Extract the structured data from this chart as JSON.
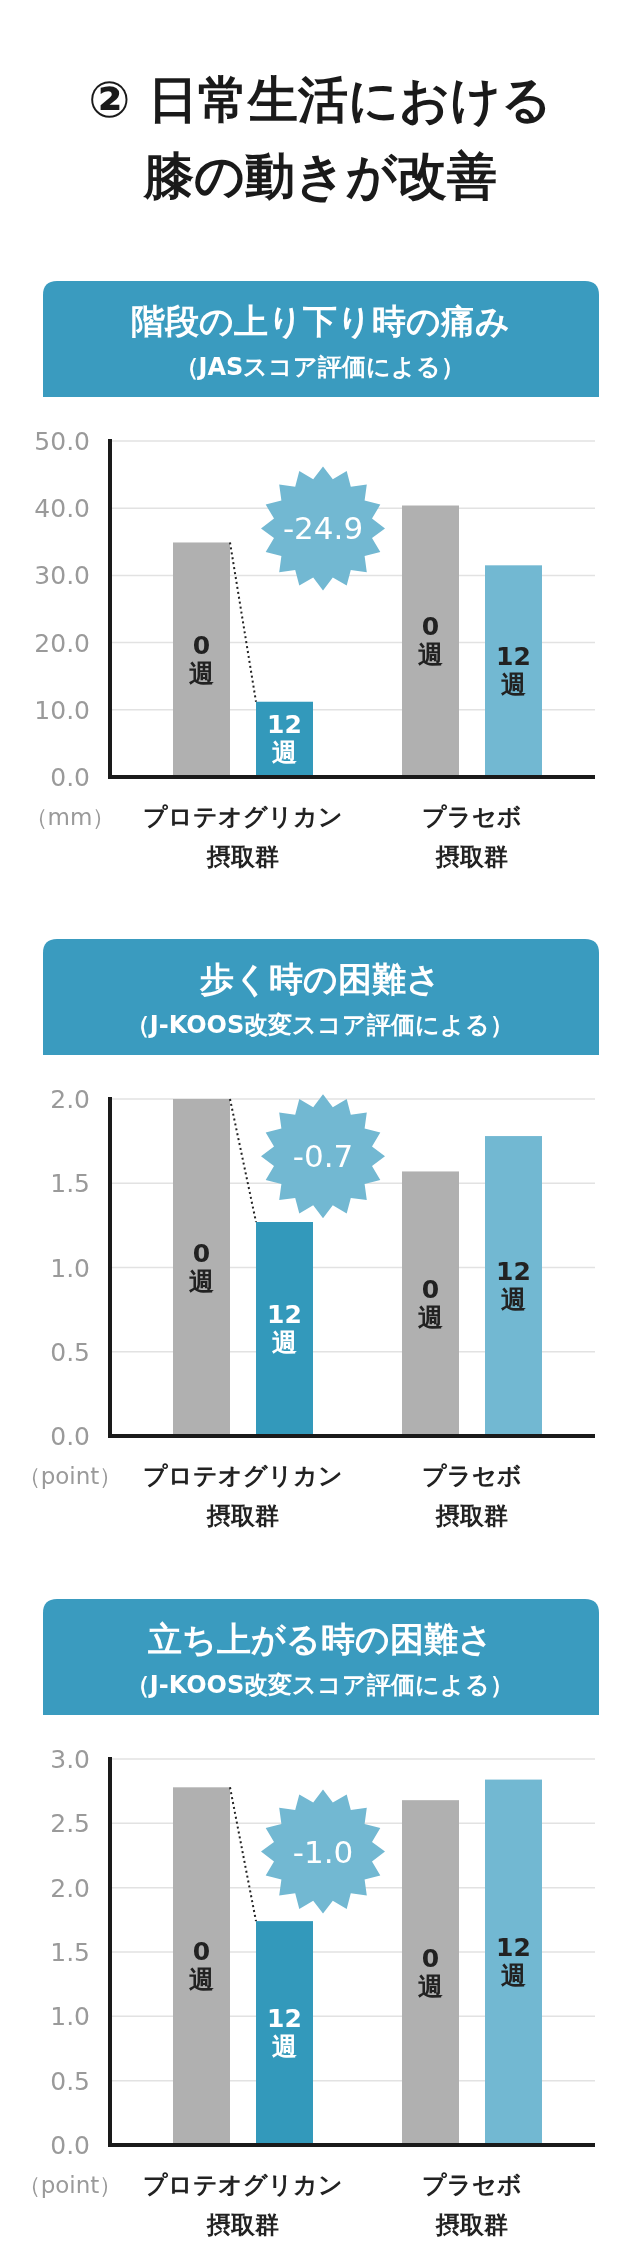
{
  "chart_data": [
    {
      "type": "bar",
      "title": "階段の上り下り時の痛み",
      "subtitle": "（JASスコア評価による）",
      "ylabel": "（mm）",
      "categories": [
        "プロテオグリカン摂取群",
        "プラセボ摂取群"
      ],
      "series": [
        {
          "name": "0\n週",
          "color": "#b0b0b0",
          "values": [
            34.9,
            40.4
          ]
        },
        {
          "name": "12\n週",
          "colors": [
            "#3399bb",
            "#72b8d2"
          ],
          "values": [
            11.2,
            31.5
          ]
        }
      ],
      "ylim": [
        0,
        50
      ],
      "yticks": [
        {
          "value": 0,
          "label": "0.0"
        },
        {
          "value": 10,
          "label": "10.0"
        },
        {
          "value": 20,
          "label": "20.0"
        },
        {
          "value": 30,
          "label": "30.0"
        },
        {
          "value": 40,
          "label": "40.0"
        },
        {
          "value": 50,
          "label": "50.0"
        }
      ],
      "grid": "y",
      "legend": false,
      "annotations": [
        "② 日常生活における膝の動きが改善",
        "-24.9"
      ]
    },
    {
      "type": "bar",
      "title": "歩く時の困難さ",
      "subtitle": "（J-KOOS改変スコア評価による）",
      "ylabel": "（point）",
      "categories": [
        "プロテオグリカン摂取群",
        "プラセボ摂取群"
      ],
      "series": [
        {
          "name": "0\n週",
          "color": "#b0b0b0",
          "values": [
            2.0,
            1.57
          ]
        },
        {
          "name": "12\n週",
          "colors": [
            "#3399bb",
            "#72b8d2"
          ],
          "values": [
            1.27,
            1.78
          ]
        }
      ],
      "ylim": [
        0,
        2
      ],
      "yticks": [
        {
          "value": 0,
          "label": "0.0"
        },
        0.5,
        {
          "value": 1,
          "label": "1.0"
        },
        1.5,
        {
          "value": 2,
          "label": "2.0"
        }
      ],
      "grid": "y",
      "legend": false,
      "annotations": [
        "-0.7"
      ]
    },
    {
      "type": "bar",
      "title": "立ち上がる時の困難さ",
      "subtitle": "（J-KOOS改変スコア評価による）",
      "ylabel": "（point）",
      "categories": [
        "プロテオグリカン摂取群",
        "プラセボ摂取群"
      ],
      "series": [
        {
          "name": "0\n週",
          "color": "#b0b0b0",
          "values": [
            2.78,
            2.68
          ]
        },
        {
          "name": "12\n週",
          "colors": [
            "#3399bb",
            "#72b8d2"
          ],
          "values": [
            1.74,
            2.84
          ]
        }
      ],
      "ylim": [
        0,
        3
      ],
      "yticks": [
        {
          "value": 0,
          "label": "0.0"
        },
        0.5,
        {
          "value": 1,
          "label": "1.0"
        },
        1.5,
        {
          "value": 2,
          "label": "2.0"
        },
        2.5,
        {
          "value": 3,
          "label": "3.0"
        }
      ],
      "grid": "y",
      "legend": false,
      "annotations": [
        "-1.0"
      ]
    }
  ]
}
